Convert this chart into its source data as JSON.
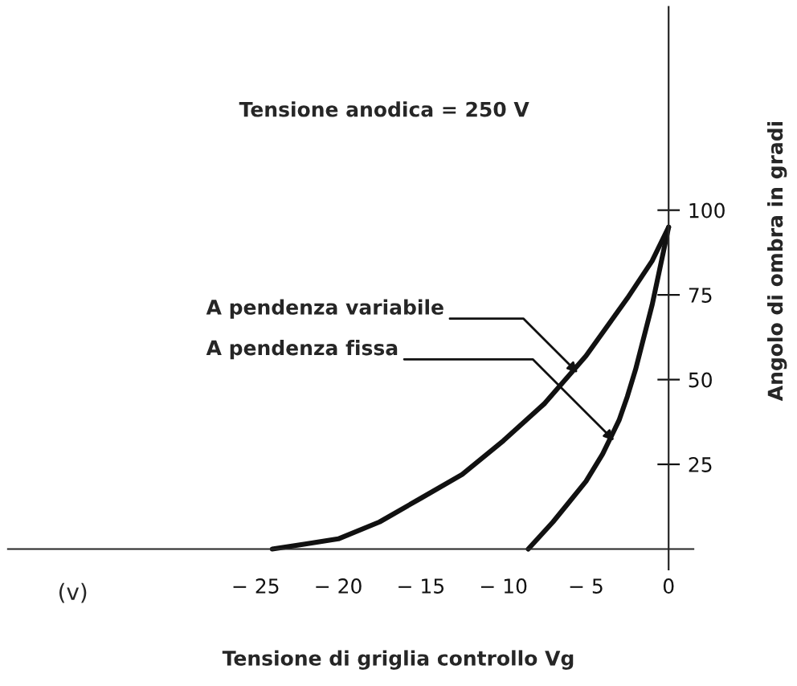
{
  "chart_data": {
    "type": "line",
    "title": "Tensione anodica = 250 V",
    "xlabel": "Tensione di griglia controllo Vg",
    "ylabel": "Angolo di ombra in gradi",
    "series": [
      {
        "x": [
          -24,
          -22,
          -20,
          -17.5,
          -15,
          -12.5,
          -10,
          -7.5,
          -5,
          -2.5,
          -1,
          0
        ],
        "values": [
          0,
          1.5,
          3,
          8,
          15,
          22,
          32,
          43,
          57,
          74,
          85,
          95
        ],
        "color": "#111111"
      },
      {
        "x": [
          -8.5,
          -7,
          -6,
          -5,
          -4,
          -3,
          -2.5,
          -2,
          -1,
          0
        ],
        "values": [
          0,
          8,
          14,
          20,
          28,
          38,
          45,
          53,
          72,
          95
        ],
        "color": "#111111"
      }
    ],
    "xlim": [
      -40,
      1.5
    ],
    "ylim": [
      -6,
      160
    ],
    "xticks": [
      {
        "value": -25,
        "label": "− 25"
      },
      {
        "value": -20,
        "label": "− 20"
      },
      {
        "value": -15,
        "label": "− 15"
      },
      {
        "value": -10,
        "label": "− 10"
      },
      {
        "value": -5,
        "label": "− 5"
      },
      {
        "value": 0,
        "label": "0"
      }
    ],
    "yticks": [
      25,
      50,
      75,
      100
    ],
    "annotations": [
      {
        "text": "A pendenza variabile",
        "x": -5.5,
        "y": 52
      },
      {
        "text": "A pendenza fissa",
        "x": -3.3,
        "y": 32
      },
      "(v)"
    ],
    "grid": false,
    "legend": false
  }
}
